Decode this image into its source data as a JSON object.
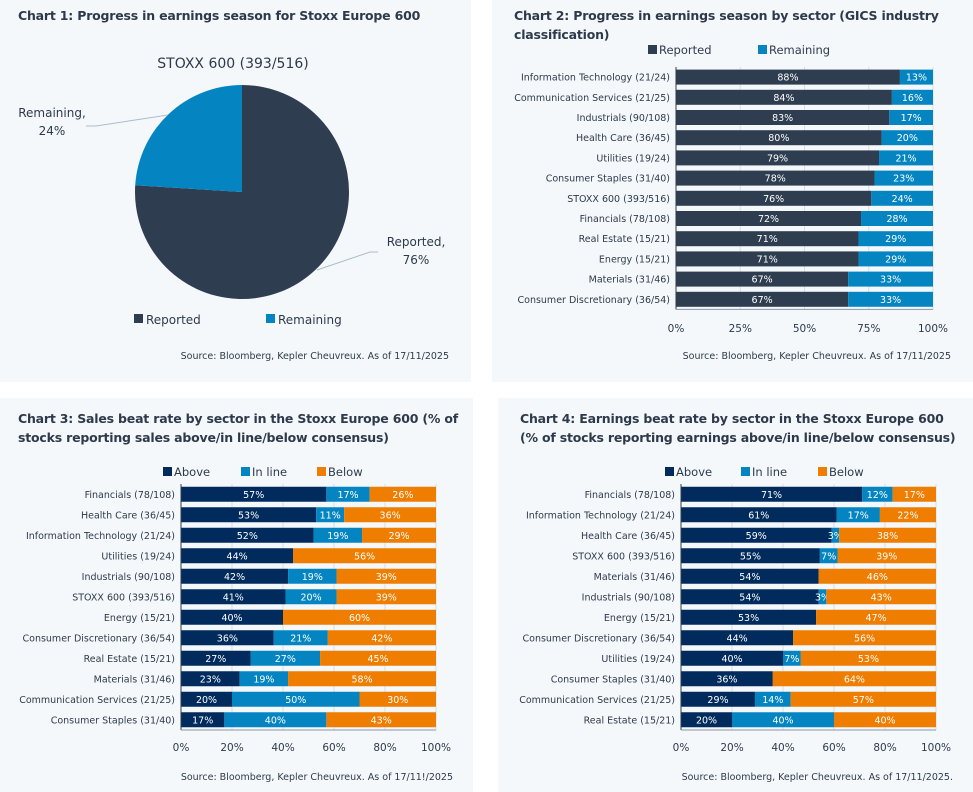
{
  "colors": {
    "reported": "#2e3d50",
    "remaining": "#0485c2",
    "above": "#002b5c",
    "inline": "#0485c2",
    "below": "#ee7d00",
    "panel_bg": "#f4f8fb",
    "text": "#2e3a4b",
    "grid": "#d9dee5"
  },
  "chart_data": [
    {
      "id": "chart1",
      "type": "pie",
      "title": "Chart 1: Progress in earnings season for Stoxx Europe 600",
      "subtitle": "STOXX 600 (393/516)",
      "slices": [
        {
          "label": "Reported",
          "value": 76,
          "display": "Reported,",
          "display_pct": "76%"
        },
        {
          "label": "Remaining",
          "value": 24,
          "display": "Remaining,",
          "display_pct": "24%"
        }
      ],
      "legend": [
        "Reported",
        "Remaining"
      ],
      "legend_position": "bottom",
      "source": "Source: Bloomberg, Kepler Cheuvreux. As of 17/11/2025"
    },
    {
      "id": "chart2",
      "type": "bar",
      "orientation": "horizontal",
      "stacked": true,
      "title": "Chart 2: Progress in earnings season by sector (GICS industry classification)",
      "categories": [
        "Information Technology (21/24)",
        "Communication Services (21/25)",
        "Industrials (90/108)",
        "Health Care (36/45)",
        "Utilities (19/24)",
        "Consumer Staples (31/40)",
        "STOXX 600 (393/516)",
        "Financials (78/108)",
        "Real Estate (15/21)",
        "Energy (15/21)",
        "Materials (31/46)",
        "Consumer Discretionary (36/54)"
      ],
      "series": [
        {
          "name": "Reported",
          "values": [
            88,
            84,
            83,
            80,
            79,
            78,
            76,
            72,
            71,
            71,
            67,
            67
          ]
        },
        {
          "name": "Remaining",
          "values": [
            13,
            16,
            17,
            20,
            21,
            23,
            24,
            28,
            29,
            29,
            33,
            33
          ]
        }
      ],
      "xlim": [
        0,
        100
      ],
      "xticks": [
        "0%",
        "25%",
        "50%",
        "75%",
        "100%"
      ],
      "grid": true,
      "legend_position": "top",
      "source": "Source: Bloomberg, Kepler Cheuvreux. As of 17/11/2025"
    },
    {
      "id": "chart3",
      "type": "bar",
      "orientation": "horizontal",
      "stacked": true,
      "title": "Chart 3: Sales beat rate by sector in the Stoxx Europe 600 (% of stocks reporting sales above/in line/below consensus)",
      "categories": [
        "Financials (78/108)",
        "Health Care (36/45)",
        "Information Technology (21/24)",
        "Utilities (19/24)",
        "Industrials (90/108)",
        "STOXX 600 (393/516)",
        "Energy (15/21)",
        "Consumer Discretionary (36/54)",
        "Real Estate (15/21)",
        "Materials (31/46)",
        "Communication Services (21/25)",
        "Consumer Staples (31/40)"
      ],
      "series": [
        {
          "name": "Above",
          "values": [
            57,
            53,
            52,
            44,
            42,
            41,
            40,
            36,
            27,
            23,
            20,
            17
          ]
        },
        {
          "name": "In line",
          "values": [
            17,
            11,
            19,
            0,
            19,
            20,
            0,
            21,
            27,
            19,
            50,
            40
          ]
        },
        {
          "name": "Below",
          "values": [
            26,
            36,
            29,
            56,
            39,
            39,
            60,
            42,
            45,
            58,
            30,
            43
          ]
        }
      ],
      "xlim": [
        0,
        100
      ],
      "xticks": [
        "0%",
        "20%",
        "40%",
        "60%",
        "80%",
        "100%"
      ],
      "grid": true,
      "legend_position": "top",
      "source": "Source: Bloomberg, Kepler Cheuvreux. As of 17/11!/2025"
    },
    {
      "id": "chart4",
      "type": "bar",
      "orientation": "horizontal",
      "stacked": true,
      "title": "Chart 4: Earnings beat rate by sector in the Stoxx Europe 600 (% of stocks reporting earnings above/in line/below consensus)",
      "categories": [
        "Financials (78/108)",
        "Information Technology (21/24)",
        "Health Care (36/45)",
        "STOXX 600 (393/516)",
        "Materials (31/46)",
        "Industrials (90/108)",
        "Energy (15/21)",
        "Consumer Discretionary (36/54)",
        "Utilities (19/24)",
        "Consumer Staples (31/40)",
        "Communication Services (21/25)",
        "Real Estate (15/21)"
      ],
      "series": [
        {
          "name": "Above",
          "values": [
            71,
            61,
            59,
            55,
            54,
            54,
            53,
            44,
            40,
            36,
            29,
            20
          ]
        },
        {
          "name": "In line",
          "values": [
            12,
            17,
            3,
            7,
            0,
            3,
            0,
            0,
            7,
            0,
            14,
            40
          ]
        },
        {
          "name": "Below",
          "values": [
            17,
            22,
            38,
            39,
            46,
            43,
            47,
            56,
            53,
            64,
            57,
            40
          ]
        }
      ],
      "xlim": [
        0,
        100
      ],
      "xticks": [
        "0%",
        "20%",
        "40%",
        "60%",
        "80%",
        "100%"
      ],
      "grid": true,
      "legend_position": "top",
      "source": "Source: Bloomberg, Kepler Cheuvreux. As of 17/11/2025."
    }
  ]
}
